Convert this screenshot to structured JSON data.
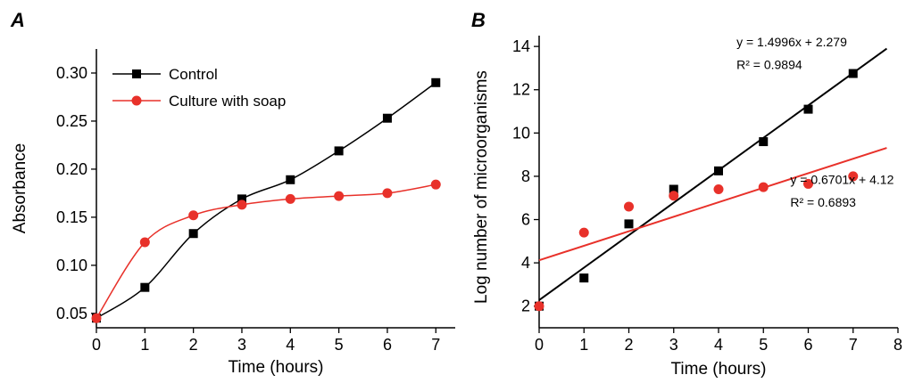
{
  "chart_data": [
    {
      "panel": "A",
      "type": "line",
      "xlabel": "Time (hours)",
      "ylabel": "Absorbance",
      "xlim": [
        0,
        7.4
      ],
      "ylim": [
        0.035,
        0.325
      ],
      "xticks": [
        0,
        1,
        2,
        3,
        4,
        5,
        6,
        7
      ],
      "xtick_labels": [
        "0",
        "1",
        "2",
        "3",
        "4",
        "5",
        "6",
        "7"
      ],
      "yticks": [
        0.05,
        0.1,
        0.15,
        0.2,
        0.25,
        0.3
      ],
      "ytick_labels": [
        "0.05",
        "0.10",
        "0.15",
        "0.20",
        "0.25",
        "0.30"
      ],
      "legend_position": "top-left",
      "grid": false,
      "series": [
        {
          "name": "Control",
          "marker": "square",
          "color": "#000000",
          "x": [
            0,
            1,
            2,
            3,
            4,
            5,
            6,
            7
          ],
          "y": [
            0.045,
            0.077,
            0.133,
            0.169,
            0.189,
            0.219,
            0.253,
            0.29
          ]
        },
        {
          "name": "Culture with soap",
          "marker": "circle",
          "color": "#e8312a",
          "x": [
            0,
            1,
            2,
            3,
            4,
            5,
            6,
            7
          ],
          "y": [
            0.045,
            0.124,
            0.152,
            0.163,
            0.169,
            0.172,
            0.175,
            0.184
          ]
        }
      ]
    },
    {
      "panel": "B",
      "type": "scatter",
      "xlabel": "Time (hours)",
      "ylabel": "Log number of microorganisms",
      "xlim": [
        0,
        8
      ],
      "ylim": [
        1,
        14.5
      ],
      "xticks": [
        0,
        1,
        2,
        3,
        4,
        5,
        6,
        7,
        8
      ],
      "xtick_labels": [
        "0",
        "1",
        "2",
        "3",
        "4",
        "5",
        "6",
        "7",
        "8"
      ],
      "yticks": [
        2,
        4,
        6,
        8,
        10,
        12,
        14
      ],
      "ytick_labels": [
        "2",
        "4",
        "6",
        "8",
        "10",
        "12",
        "14"
      ],
      "grid": false,
      "series": [
        {
          "marker": "square",
          "color": "#000000",
          "x": [
            0,
            1,
            2,
            3,
            4,
            5,
            6,
            7
          ],
          "y": [
            2.0,
            3.3,
            5.8,
            7.4,
            8.25,
            9.6,
            11.1,
            12.75
          ],
          "fit": {
            "slope": 1.4996,
            "intercept": 2.279,
            "x_range": [
              0,
              7.75
            ]
          }
        },
        {
          "marker": "circle",
          "color": "#e8312a",
          "x": [
            0,
            1,
            2,
            3,
            4,
            5,
            6,
            7
          ],
          "y": [
            2.0,
            5.4,
            6.6,
            7.1,
            7.4,
            7.5,
            7.65,
            8.0
          ],
          "fit": {
            "slope": 0.6701,
            "intercept": 4.12,
            "x_range": [
              0,
              7.75
            ]
          }
        }
      ],
      "annotations": [
        {
          "text": "y = 1.4996x + 2.279",
          "anchor_x": 4.4,
          "anchor_y": 14.0
        },
        {
          "text": "R² = 0.9894",
          "anchor_x": 4.4,
          "anchor_y": 12.95
        },
        {
          "text": "y = 0.6701x + 4.12",
          "anchor_x": 5.6,
          "anchor_y": 7.65
        },
        {
          "text": "R² = 0.6893",
          "anchor_x": 5.6,
          "anchor_y": 6.6
        }
      ]
    }
  ]
}
